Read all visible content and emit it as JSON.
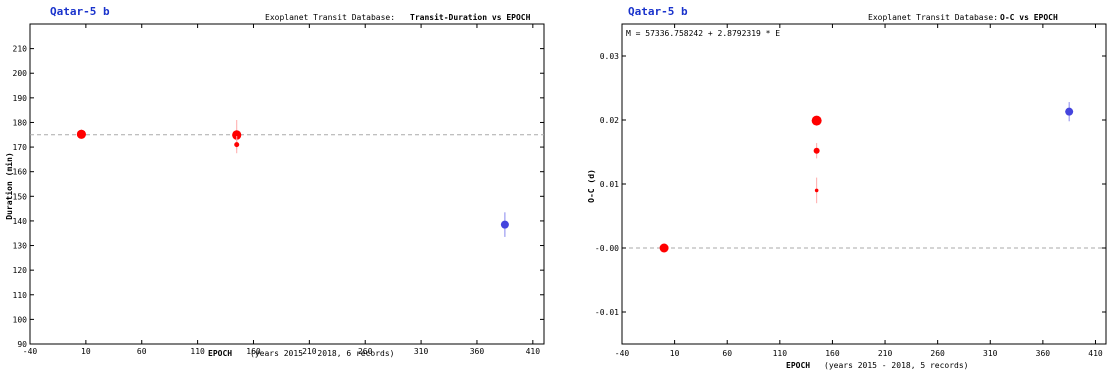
{
  "chart_data": [
    {
      "type": "scatter",
      "planet": "Qatar-5 b",
      "header_prefix": "Exoplanet Transit Database:",
      "header_title": "Transit-Duration vs EPOCH",
      "xlabel": "EPOCH",
      "xsublabel": "(years 2015 - 2018, 6 records)",
      "ylabel": "Duration (min)",
      "xlim": [
        -40,
        420
      ],
      "ylim": [
        90,
        220
      ],
      "xticks": [
        -40,
        10,
        60,
        110,
        160,
        210,
        260,
        310,
        360,
        410
      ],
      "yticks": [
        90,
        100,
        110,
        120,
        130,
        140,
        150,
        160,
        170,
        180,
        190,
        200,
        210
      ],
      "reference_line": 175,
      "grid": false,
      "points": [
        {
          "x": 6,
          "y": 175.2,
          "err": 0.6,
          "color": "#ff0000",
          "r": 4.5
        },
        {
          "x": 6,
          "y": 175.2,
          "err": 0.6,
          "color": "#ff0000",
          "r": 4.5
        },
        {
          "x": 145,
          "y": 174.8,
          "err": 1.2,
          "color": "#ff0000",
          "r": 4.5
        },
        {
          "x": 145,
          "y": 175.0,
          "err": 6.0,
          "color": "#ff0000",
          "r": 4.5
        },
        {
          "x": 145,
          "y": 171.0,
          "err": 3.5,
          "color": "#ff0000",
          "r": 2.5
        },
        {
          "x": 385,
          "y": 138.5,
          "err": 5.0,
          "color": "#4444dd",
          "r": 4.0
        }
      ]
    },
    {
      "type": "scatter",
      "planet": "Qatar-5 b",
      "header_prefix": "Exoplanet Transit Database:",
      "header_title": "O-C vs EPOCH",
      "equation": "M = 57336.758242 + 2.8792319 * E",
      "xlabel": "EPOCH",
      "xsublabel": "(years 2015 - 2018, 5 records)",
      "ylabel": "O-C (d)",
      "xlim": [
        -40,
        420
      ],
      "ylim": [
        -0.015,
        0.035
      ],
      "xticks": [
        -40,
        10,
        60,
        110,
        160,
        210,
        260,
        310,
        360,
        410
      ],
      "xtick_labels": [
        "-40",
        "10",
        "60",
        "110",
        "160",
        "210",
        "260",
        "310",
        "360",
        "410"
      ],
      "yticks": [
        -0.01,
        0.0,
        0.01,
        0.02,
        0.03
      ],
      "ytick_labels": [
        "-0.01",
        "-0.00",
        "0.01",
        "0.02",
        "0.03"
      ],
      "reference_line": 0.0,
      "grid": false,
      "points": [
        {
          "x": 0,
          "y": 0.0,
          "err": 0.0005,
          "color": "#ff0000",
          "r": 4.5
        },
        {
          "x": 145,
          "y": 0.0199,
          "err": 0.0006,
          "color": "#ff0000",
          "r": 5.0
        },
        {
          "x": 145,
          "y": 0.0152,
          "err": 0.0012,
          "color": "#ff0000",
          "r": 3.0
        },
        {
          "x": 145,
          "y": 0.009,
          "err": 0.002,
          "color": "#ff0000",
          "r": 1.8
        },
        {
          "x": 385,
          "y": 0.0213,
          "err": 0.0015,
          "color": "#4444dd",
          "r": 4.0
        }
      ]
    }
  ]
}
